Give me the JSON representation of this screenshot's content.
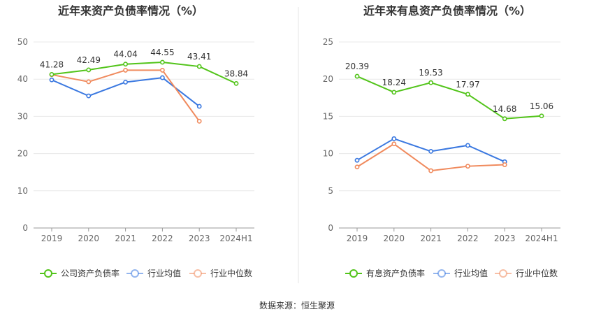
{
  "source": "数据来源：恒生聚源",
  "colors": {
    "company": "#52c41a",
    "avg": "#3a78e0",
    "median": "#f08a5d"
  },
  "chart_data": [
    {
      "type": "line",
      "title": "近年来资产负债率情况（%）",
      "categories": [
        "2019",
        "2020",
        "2021",
        "2022",
        "2023",
        "2024H1"
      ],
      "yticks": [
        0,
        10,
        20,
        30,
        40,
        50
      ],
      "ylim": [
        0,
        50
      ],
      "series": [
        {
          "name": "公司资产负债率",
          "key": "company",
          "values": [
            41.28,
            42.49,
            44.04,
            44.55,
            43.41,
            38.84
          ],
          "labels": [
            "41.28",
            "42.49",
            "44.04",
            "44.55",
            "43.41",
            "38.84"
          ]
        },
        {
          "name": "行业均值",
          "key": "avg",
          "values": [
            39.8,
            35.5,
            39.2,
            40.4,
            32.7,
            null
          ]
        },
        {
          "name": "行业中位数",
          "key": "median",
          "values": [
            41.2,
            39.3,
            42.4,
            42.4,
            28.7,
            null
          ]
        }
      ],
      "legend": "bottom"
    },
    {
      "type": "line",
      "title": "近年来有息资产负债率情况（%）",
      "categories": [
        "2019",
        "2020",
        "2021",
        "2022",
        "2023",
        "2024H1"
      ],
      "yticks": [
        0,
        5,
        10,
        15,
        20,
        25
      ],
      "ylim": [
        0,
        25
      ],
      "series": [
        {
          "name": "有息资产负债率",
          "key": "company",
          "values": [
            20.39,
            18.24,
            19.53,
            17.97,
            14.68,
            15.06
          ],
          "labels": [
            "20.39",
            "18.24",
            "19.53",
            "17.97",
            "14.68",
            "15.06"
          ]
        },
        {
          "name": "行业均值",
          "key": "avg",
          "values": [
            9.1,
            12.0,
            10.3,
            11.1,
            8.9,
            null
          ]
        },
        {
          "name": "行业中位数",
          "key": "median",
          "values": [
            8.2,
            11.3,
            7.7,
            8.3,
            8.5,
            null
          ]
        }
      ],
      "legend": "bottom"
    }
  ]
}
